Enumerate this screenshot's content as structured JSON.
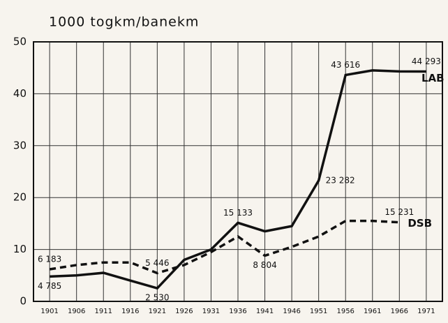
{
  "chart_data": {
    "type": "line",
    "title": "1000 togkm/banekm",
    "x": [
      1901,
      1906,
      1911,
      1916,
      1921,
      1926,
      1931,
      1936,
      1941,
      1946,
      1951,
      1956,
      1961,
      1966,
      1971
    ],
    "series": [
      {
        "name": "LAB",
        "color": "#111111",
        "dash": false,
        "values": [
          4.785,
          5,
          5.5,
          4,
          2.53,
          8,
          10,
          15.133,
          13.5,
          14.5,
          23.282,
          43.616,
          44.5,
          44.3,
          44.293
        ],
        "value_labels": [
          "4 785",
          null,
          null,
          null,
          "2 530",
          null,
          null,
          "15 133",
          null,
          null,
          "23 282",
          "43 616",
          null,
          null,
          "44 293"
        ]
      },
      {
        "name": "DSB",
        "color": "#111111",
        "dash": true,
        "values": [
          6.183,
          7,
          7.5,
          7.5,
          5.446,
          7,
          9.5,
          12.5,
          8.804,
          10.5,
          12.5,
          15.5,
          15.5,
          15.231,
          null
        ],
        "value_labels": [
          "6 183",
          null,
          null,
          null,
          "5 446",
          null,
          null,
          null,
          "8 804",
          null,
          null,
          null,
          null,
          "15 231",
          null
        ]
      }
    ],
    "xlim": [
      1898,
      1974
    ],
    "xticks": [
      1901,
      1906,
      1911,
      1916,
      1921,
      1926,
      1931,
      1936,
      1941,
      1946,
      1951,
      1956,
      1961,
      1966,
      1971
    ],
    "ylim": [
      0,
      50
    ],
    "yticks": [
      0,
      10,
      20,
      30,
      40,
      50
    ],
    "grid": true
  }
}
